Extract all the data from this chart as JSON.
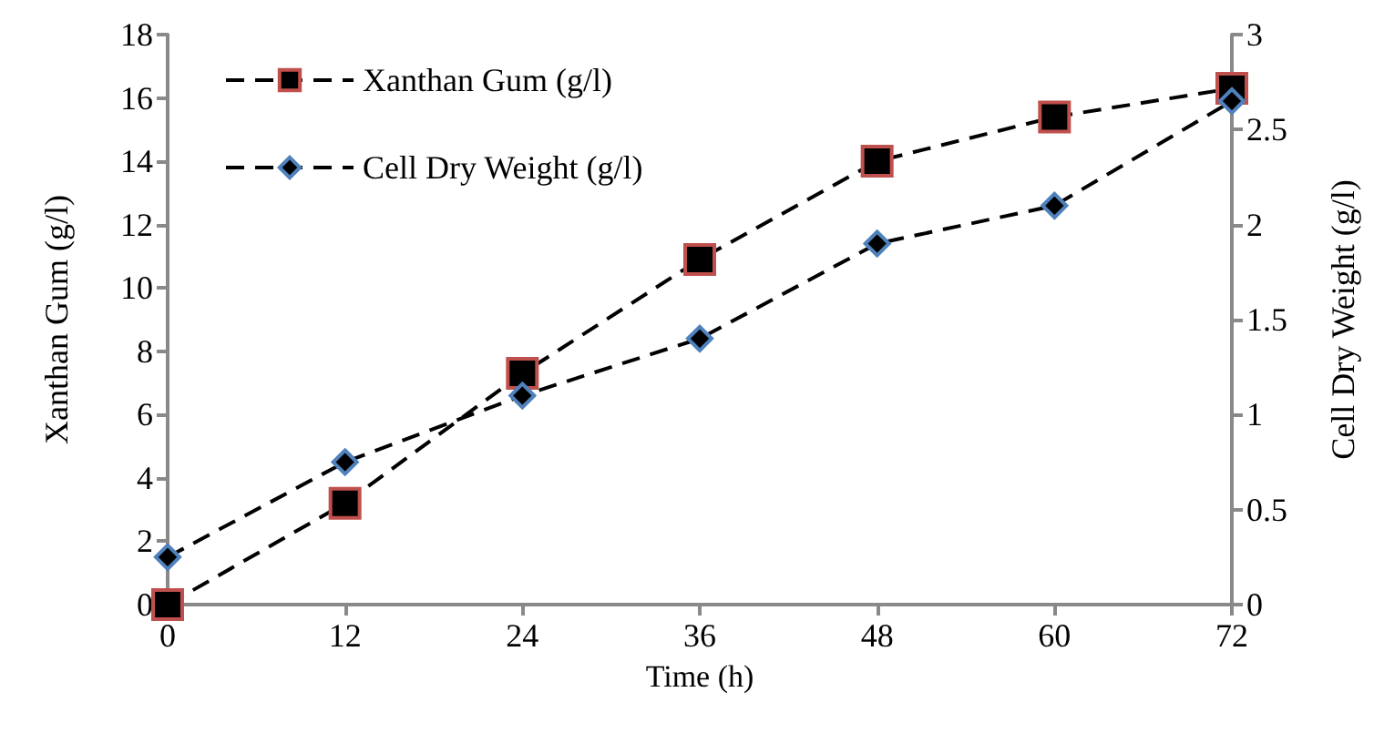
{
  "chart_data": {
    "type": "line",
    "xlabel": "Time (h)",
    "ylabel": "Xanthan Gum (g/l)",
    "y2label": "Cell Dry Weight (g/l)",
    "x": [
      0,
      12,
      24,
      36,
      48,
      60,
      72
    ],
    "xlim": [
      0,
      72
    ],
    "xticks": [
      0,
      12,
      24,
      36,
      48,
      60,
      72
    ],
    "ylim": [
      0,
      18
    ],
    "yticks": [
      0,
      2,
      4,
      6,
      8,
      10,
      12,
      14,
      16,
      18
    ],
    "y2lim": [
      0,
      3
    ],
    "y2ticks": [
      0,
      0.5,
      1,
      1.5,
      2,
      2.5,
      3
    ],
    "series": [
      {
        "name": "Xanthan Gum (g/l)",
        "color": "#c0504d",
        "marker": "square",
        "line_style": "dashed",
        "values": [
          0,
          3.2,
          7.3,
          10.9,
          14.0,
          15.4,
          16.3
        ]
      },
      {
        "name": "Cell Dry Weight (g/l)",
        "color": "#4f81bd",
        "marker": "diamond",
        "line_style": "dashed",
        "axis": "y2",
        "values": [
          0.25,
          0.75,
          1.1,
          1.4,
          1.9,
          2.1,
          2.65
        ]
      }
    ],
    "grid": false,
    "legend": "top left"
  }
}
